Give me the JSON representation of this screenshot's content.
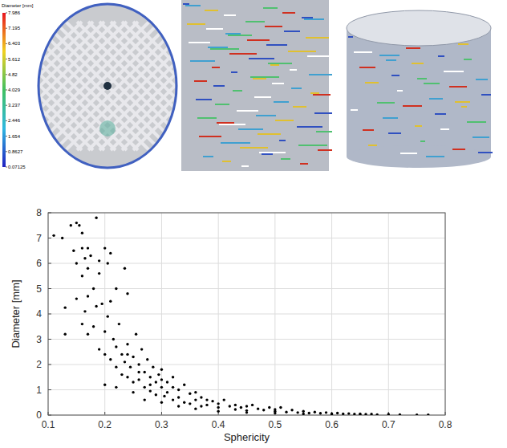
{
  "chart_data": {
    "type": "scatter",
    "x_label": "Sphericity",
    "y_label": "Diameter [mm]",
    "color": "#000000",
    "marker": "circle",
    "grid": true,
    "xlim": [
      0.1,
      0.8
    ],
    "ylim": [
      0,
      8
    ],
    "xticks": [
      0.1,
      0.2,
      0.3,
      0.4,
      0.5,
      0.6,
      0.7,
      0.8
    ],
    "yticks": [
      0,
      1,
      2,
      3,
      4,
      5,
      6,
      7,
      8
    ],
    "x": [
      0.11,
      0.125,
      0.13,
      0.13,
      0.14,
      0.145,
      0.15,
      0.15,
      0.15,
      0.155,
      0.16,
      0.16,
      0.16,
      0.16,
      0.165,
      0.165,
      0.17,
      0.17,
      0.17,
      0.17,
      0.175,
      0.18,
      0.18,
      0.185,
      0.185,
      0.19,
      0.19,
      0.19,
      0.195,
      0.2,
      0.2,
      0.2,
      0.205,
      0.205,
      0.21,
      0.21,
      0.21,
      0.215,
      0.22,
      0.22,
      0.22,
      0.225,
      0.23,
      0.23,
      0.235,
      0.235,
      0.24,
      0.24,
      0.24,
      0.245,
      0.25,
      0.25,
      0.255,
      0.26,
      0.26,
      0.265,
      0.27,
      0.27,
      0.275,
      0.28,
      0.28,
      0.285,
      0.29,
      0.29,
      0.295,
      0.3,
      0.3,
      0.305,
      0.31,
      0.31,
      0.32,
      0.32,
      0.33,
      0.33,
      0.34,
      0.34,
      0.35,
      0.35,
      0.36,
      0.36,
      0.37,
      0.37,
      0.38,
      0.38,
      0.39,
      0.4,
      0.4,
      0.41,
      0.42,
      0.43,
      0.43,
      0.44,
      0.45,
      0.45,
      0.46,
      0.47,
      0.48,
      0.49,
      0.5,
      0.5,
      0.51,
      0.52,
      0.53,
      0.54,
      0.55,
      0.56,
      0.57,
      0.58,
      0.59,
      0.6,
      0.61,
      0.62,
      0.63,
      0.64,
      0.65,
      0.66,
      0.67,
      0.68,
      0.7,
      0.72,
      0.75,
      0.77,
      0.2,
      0.22,
      0.25,
      0.27,
      0.3,
      0.33,
      0.36,
      0.4,
      0.45,
      0.5,
      0.55,
      0.6,
      0.65,
      0.24,
      0.26,
      0.28,
      0.3,
      0.32
    ],
    "values": [
      7.1,
      7.0,
      4.25,
      3.2,
      7.5,
      6.5,
      7.6,
      6.0,
      4.6,
      7.5,
      7.2,
      6.6,
      5.5,
      3.6,
      6.2,
      4.1,
      6.6,
      5.8,
      4.7,
      3.2,
      6.3,
      5.0,
      3.5,
      7.8,
      4.3,
      6.1,
      5.6,
      2.6,
      4.4,
      6.6,
      3.3,
      2.4,
      6.0,
      3.9,
      6.4,
      4.5,
      2.2,
      3.0,
      5.0,
      2.7,
      1.9,
      3.6,
      2.4,
      1.6,
      5.8,
      2.1,
      4.8,
      2.8,
      1.5,
      1.9,
      2.3,
      1.3,
      3.2,
      2.0,
      1.4,
      2.6,
      1.7,
      1.1,
      2.2,
      1.5,
      0.95,
      1.9,
      1.3,
      0.8,
      1.6,
      1.1,
      1.8,
      0.75,
      1.3,
      0.9,
      1.5,
      0.6,
      1.0,
      0.7,
      1.2,
      0.5,
      0.85,
      0.45,
      0.9,
      0.6,
      0.7,
      0.35,
      0.6,
      0.4,
      0.55,
      0.45,
      0.3,
      0.6,
      0.35,
      0.4,
      0.22,
      0.3,
      0.35,
      0.18,
      0.4,
      0.25,
      0.2,
      0.3,
      0.15,
      0.22,
      0.3,
      0.12,
      0.2,
      0.1,
      0.15,
      0.08,
      0.12,
      0.07,
      0.1,
      0.06,
      0.08,
      0.05,
      0.06,
      0.04,
      0.05,
      0.03,
      0.04,
      0.02,
      0.03,
      0.02,
      0.01,
      0.01,
      1.2,
      1.1,
      0.9,
      0.6,
      0.5,
      0.35,
      0.25,
      0.15,
      0.1,
      0.08,
      0.05,
      0.03,
      0.02,
      2.4,
      1.7,
      1.2,
      1.4,
      1.1
    ],
    "colorbar": {
      "label": "Diameter [mm]",
      "range": [
        0.07125,
        7.986
      ],
      "ticks": [
        7.986,
        7.195,
        6.403,
        5.612,
        4.82,
        4.029,
        3.237,
        2.446,
        1.654,
        0.8627,
        0.07125
      ]
    }
  }
}
